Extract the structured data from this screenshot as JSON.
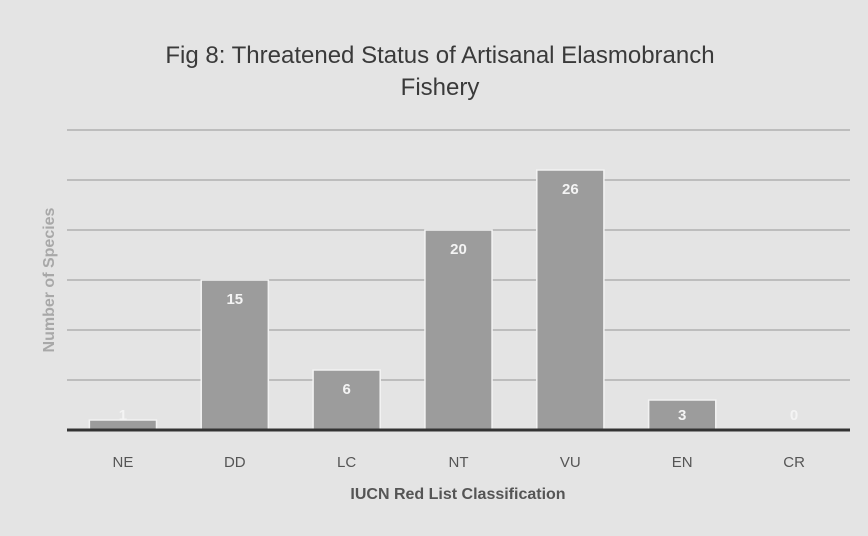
{
  "chart_data": {
    "type": "bar",
    "title": "Fig 8: Threatened Status of Artisanal Elasmobranch Fishery",
    "xlabel": "IUCN Red List Classification",
    "ylabel": "Number of Species",
    "categories": [
      "NE",
      "DD",
      "LC",
      "NT",
      "VU",
      "EN",
      "CR"
    ],
    "values": [
      1,
      15,
      6,
      20,
      26,
      3,
      0
    ],
    "color": "#9c9c9c",
    "ylim": [
      0,
      30
    ],
    "yticks": [
      0,
      5,
      10,
      15,
      20,
      25,
      30
    ],
    "grid": true
  }
}
